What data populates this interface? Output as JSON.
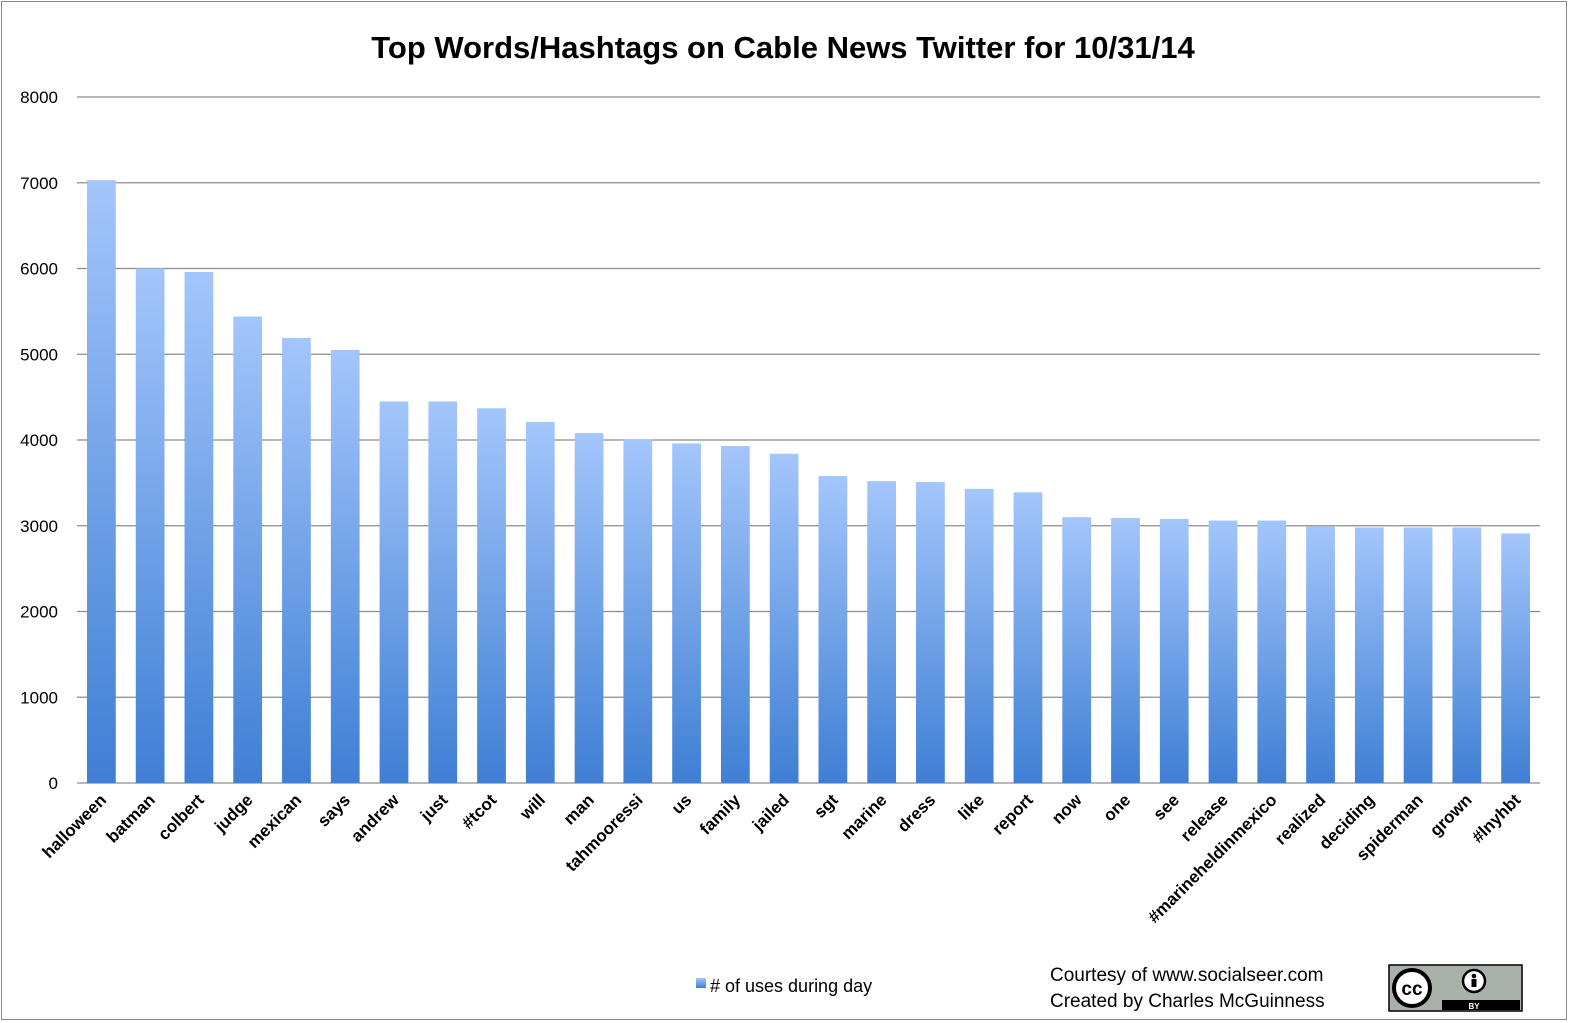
{
  "chart_data": {
    "type": "bar",
    "title": "Top Words/Hashtags on Cable News Twitter for 10/31/14",
    "xlabel": "",
    "ylabel": "",
    "ylim": [
      0,
      8000
    ],
    "yticks": [
      "0",
      "1000",
      "2000",
      "3000",
      "4000",
      "5000",
      "6000",
      "7000",
      "8000"
    ],
    "grid": true,
    "legend_position": "bottom",
    "categories": [
      "halloween",
      "batman",
      "colbert",
      "judge",
      "mexican",
      "says",
      "andrew",
      "just",
      "#tcot",
      "will",
      "man",
      "tahmooressi",
      "us",
      "family",
      "jailed",
      "sgt",
      "marine",
      "dress",
      "like",
      "report",
      "now",
      "one",
      "see",
      "release",
      "#marineheldinmexico",
      "realized",
      "deciding",
      "spiderman",
      "grown",
      "#lnyhbt"
    ],
    "series": [
      {
        "name": "# of uses during day",
        "values": [
          7030,
          6000,
          5960,
          5440,
          5190,
          5050,
          4450,
          4450,
          4370,
          4210,
          4080,
          4010,
          3960,
          3930,
          3840,
          3580,
          3520,
          3510,
          3430,
          3390,
          3100,
          3090,
          3080,
          3060,
          3060,
          2990,
          2980,
          2980,
          2980,
          2910
        ]
      }
    ],
    "colors": {
      "bar_top": "#a3c6fb",
      "bar_bottom": "#3f7fd4",
      "grid": "#8c8c8c"
    }
  },
  "credits": {
    "line1": "Courtesy of www.socialseer.com",
    "line2": "Created by Charles McGuinness"
  },
  "license_badge": {
    "icon": "cc-by-icon",
    "text": "BY"
  }
}
